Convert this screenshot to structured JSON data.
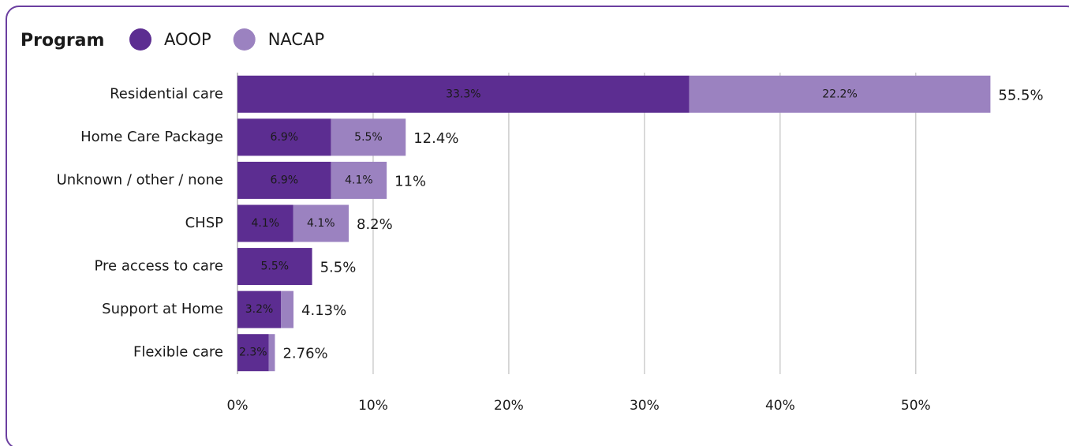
{
  "chart_data": {
    "type": "bar",
    "orientation": "horizontal",
    "stacked": true,
    "legend_title": "Program",
    "categories": [
      "Residential care",
      "Home Care Package",
      "Unknown / other / none",
      "CHSP",
      "Pre access to care",
      "Support at Home",
      "Flexible care"
    ],
    "series": [
      {
        "name": "AOOP",
        "color": "#5c2d91",
        "values": [
          33.3,
          6.9,
          6.9,
          4.1,
          5.5,
          3.2,
          2.3
        ],
        "value_labels": [
          "33.3%",
          "6.9%",
          "6.9%",
          "4.1%",
          "5.5%",
          "3.2%",
          "2.3%"
        ]
      },
      {
        "name": "NACAP",
        "color": "#9b82c0",
        "values": [
          22.2,
          5.5,
          4.1,
          4.1,
          0,
          0.93,
          0.46
        ],
        "value_labels": [
          "22.2%",
          "5.5%",
          "4.1%",
          "4.1%",
          null,
          null,
          null
        ]
      }
    ],
    "totals": [
      55.5,
      12.4,
      11,
      8.2,
      5.5,
      4.13,
      2.76
    ],
    "total_labels": [
      "55.5%",
      "12.4%",
      "11%",
      "8.2%",
      "5.5%",
      "4.13%",
      "2.76%"
    ],
    "xlim": [
      0,
      56
    ],
    "xticks": [
      {
        "value": 0,
        "label": "0%"
      },
      {
        "value": 10,
        "label": "10%"
      },
      {
        "value": 20,
        "label": "20%"
      },
      {
        "value": 30,
        "label": "30%"
      },
      {
        "value": 40,
        "label": "40%"
      },
      {
        "value": 50,
        "label": "50%"
      }
    ],
    "grid": true
  }
}
